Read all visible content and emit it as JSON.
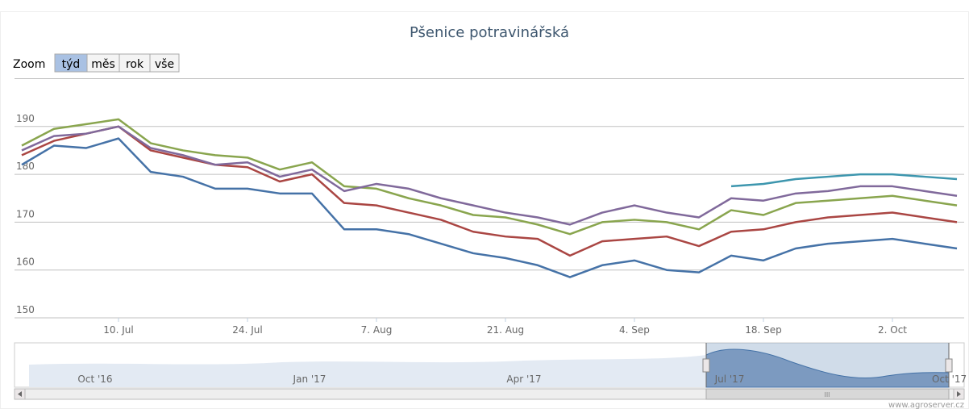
{
  "zoom": {
    "label": "Zoom",
    "buttons": [
      "týd",
      "měs",
      "rok",
      "vše"
    ]
  },
  "navigator": {
    "labels": [
      "Oct '16",
      "Jan '17",
      "Apr '17",
      "Jul '17",
      "Oct '17"
    ],
    "scrollbar": "III"
  },
  "credits": "www.agroserver.cz",
  "chart_data": {
    "type": "line",
    "title": "Pšenice potravinářská",
    "categories": [
      null,
      null,
      null,
      "10. Jul",
      null,
      null,
      null,
      "24. Jul",
      null,
      null,
      null,
      "7. Aug",
      null,
      null,
      null,
      "21. Aug",
      null,
      null,
      null,
      "4. Sep",
      null,
      null,
      null,
      "18. Sep",
      null,
      null,
      null,
      "2. Oct",
      null,
      null
    ],
    "ylim": [
      150,
      200
    ],
    "yticks": [
      150,
      160,
      170,
      180,
      190
    ],
    "grid": true,
    "series": [
      {
        "color": "#4572A7",
        "values": [
          182,
          186,
          185.5,
          187.5,
          180.5,
          179.5,
          177,
          177,
          176,
          176,
          168.5,
          168.5,
          167.5,
          165.5,
          163.5,
          162.5,
          161,
          158.5,
          161,
          162,
          160,
          159.5,
          163,
          162,
          164.5,
          165.5,
          166,
          166.5,
          165.5,
          164.5
        ]
      },
      {
        "color": "#AA4643",
        "values": [
          184,
          187,
          188.5,
          190,
          185,
          183.5,
          182,
          181.5,
          178.5,
          180,
          174,
          173.5,
          172,
          170.5,
          168,
          167,
          166.5,
          163,
          166,
          166.5,
          167,
          165,
          168,
          168.5,
          170,
          171,
          171.5,
          172,
          171,
          170
        ]
      },
      {
        "color": "#89A54E",
        "values": [
          186,
          189.5,
          190.5,
          191.5,
          186.5,
          185,
          184,
          183.5,
          181,
          182.5,
          177.5,
          177,
          175,
          173.5,
          171.5,
          171,
          169.5,
          167.5,
          170,
          170.5,
          170,
          168.5,
          172.5,
          171.5,
          174,
          174.5,
          175,
          175.5,
          174.5,
          173.5
        ]
      },
      {
        "color": "#80699B",
        "values": [
          185,
          188,
          188.5,
          190,
          185.5,
          184,
          182,
          182.5,
          179.5,
          181,
          176.5,
          178,
          177,
          175,
          173.5,
          172,
          171,
          169.5,
          172,
          173.5,
          172,
          171,
          175,
          174.5,
          176,
          176.5,
          177.5,
          177.5,
          176.5,
          175.5
        ]
      },
      {
        "color": "#3D96AE",
        "values": [
          null,
          null,
          null,
          null,
          null,
          null,
          null,
          null,
          null,
          null,
          null,
          null,
          null,
          null,
          null,
          null,
          null,
          null,
          null,
          null,
          null,
          null,
          177.5,
          178,
          179,
          179.5,
          180,
          180,
          179.5,
          179
        ]
      }
    ]
  }
}
